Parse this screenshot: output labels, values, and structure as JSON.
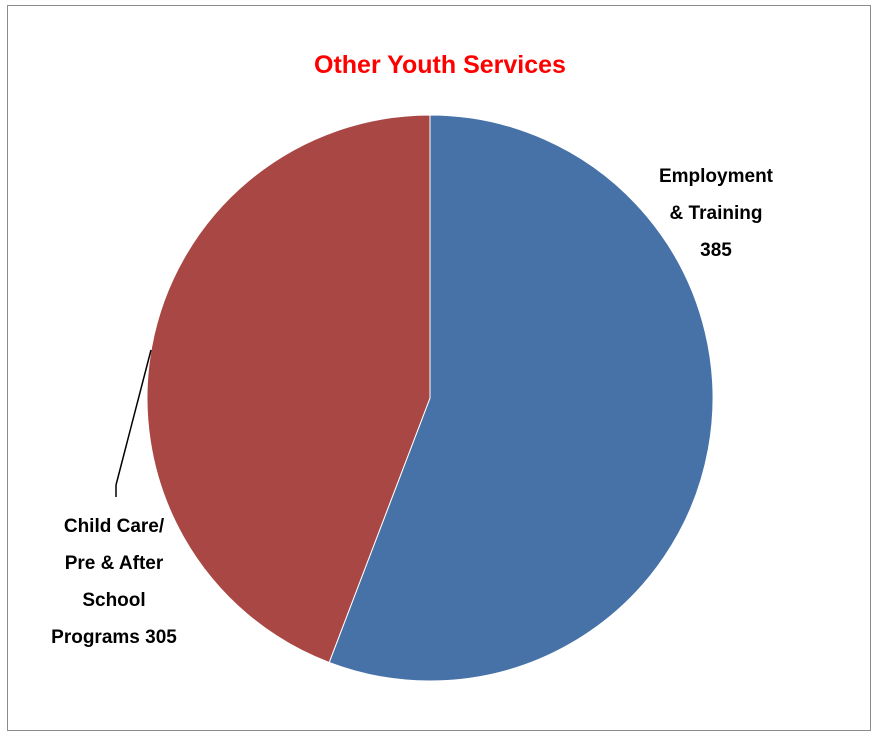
{
  "chart_data": {
    "type": "pie",
    "title": "Other Youth Services",
    "title_color": "#ff0000",
    "slices": [
      {
        "label_lines": [
          "Employment",
          "& Training",
          "385"
        ],
        "value": 385,
        "color": "#4672a8"
      },
      {
        "label_lines": [
          "Child Care/",
          "Pre & After",
          "School",
          "Programs 305"
        ],
        "value": 305,
        "color": "#a94744"
      }
    ],
    "legend": "none"
  }
}
